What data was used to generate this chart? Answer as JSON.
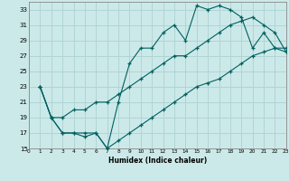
{
  "title": "",
  "xlabel": "Humidex (Indice chaleur)",
  "background_color": "#cce9e9",
  "grid_color": "#b0d4d4",
  "line_color": "#006060",
  "xlim": [
    0,
    23
  ],
  "ylim": [
    15,
    34
  ],
  "xticks": [
    0,
    1,
    2,
    3,
    4,
    5,
    6,
    7,
    8,
    9,
    10,
    11,
    12,
    13,
    14,
    15,
    16,
    17,
    18,
    19,
    20,
    21,
    22,
    23
  ],
  "yticks": [
    15,
    17,
    19,
    21,
    23,
    25,
    27,
    29,
    31,
    33
  ],
  "line_max_x": [
    1,
    2,
    3,
    4,
    5,
    6,
    7,
    8,
    9,
    10,
    11,
    12,
    13,
    14,
    15,
    16,
    17,
    18,
    19,
    20,
    21,
    22,
    23
  ],
  "line_max_y": [
    23,
    19,
    17,
    17,
    17,
    17,
    15,
    21,
    26,
    28,
    28,
    30,
    31,
    29,
    33.5,
    33,
    33.5,
    33,
    32,
    28,
    30,
    28,
    28
  ],
  "line_mean_x": [
    1,
    2,
    3,
    4,
    5,
    6,
    7,
    8,
    9,
    10,
    11,
    12,
    13,
    14,
    15,
    16,
    17,
    18,
    19,
    20,
    21,
    22,
    23
  ],
  "line_mean_y": [
    23,
    19,
    19,
    20,
    20,
    21,
    21,
    22,
    23,
    24,
    25,
    26,
    27,
    27,
    28,
    29,
    30,
    31,
    31.5,
    32,
    31,
    30,
    27.5
  ],
  "line_min_x": [
    1,
    2,
    3,
    4,
    5,
    6,
    7,
    8,
    9,
    10,
    11,
    12,
    13,
    14,
    15,
    16,
    17,
    18,
    19,
    20,
    21,
    22,
    23
  ],
  "line_min_y": [
    23,
    19,
    17,
    17,
    16.5,
    17,
    15,
    16,
    17,
    18,
    19,
    20,
    21,
    22,
    23,
    23.5,
    24,
    25,
    26,
    27,
    27.5,
    28,
    27.5
  ]
}
